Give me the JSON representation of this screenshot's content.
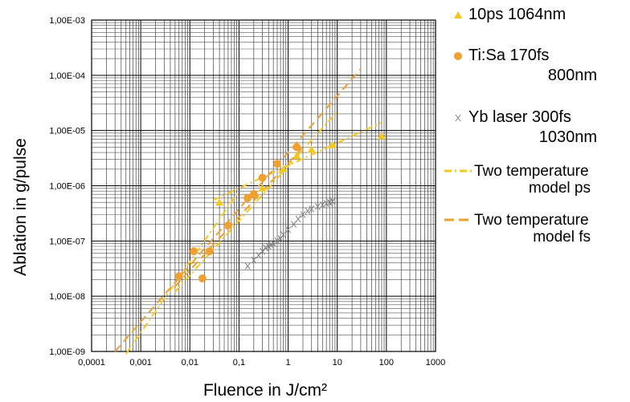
{
  "chart_data": {
    "type": "scatter",
    "xscale": "log",
    "yscale": "log",
    "xlim": [
      0.0001,
      1000
    ],
    "ylim": [
      1e-09,
      0.001
    ],
    "grid": true,
    "grid_minor": true,
    "xlabel": "Fluence in J/cm²",
    "ylabel": "Ablation in g/pulse",
    "x_tick_labels": [
      "0,0001",
      "0,001",
      "0,01",
      "0,1",
      "1",
      "10",
      "100",
      "1000"
    ],
    "y_tick_labels": [
      "1,00E-09",
      "1,00E-08",
      "1,00E-07",
      "1,00E-06",
      "1,00E-05",
      "1,00E-04",
      "1,00E-03"
    ],
    "legend_position": "right",
    "series": [
      {
        "name": "10ps 1064nm",
        "kind": "points",
        "marker": "triangle",
        "color": "#F5C71A",
        "points": [
          [
            0.04,
            5e-07
          ],
          [
            0.3,
            9e-07
          ],
          [
            0.8,
            2e-06
          ],
          [
            1.5,
            3.5e-06
          ],
          [
            3,
            4.5e-06
          ],
          [
            8,
            5.5e-06
          ],
          [
            80,
            8e-06
          ]
        ]
      },
      {
        "name": "Ti:Sa 170fs 800nm",
        "kind": "points",
        "marker": "circle",
        "color": "#F0A030",
        "points": [
          [
            0.006,
            2.3e-08
          ],
          [
            0.012,
            6.5e-08
          ],
          [
            0.018,
            2.1e-08
          ],
          [
            0.025,
            6.5e-08
          ],
          [
            0.06,
            1.9e-07
          ],
          [
            0.15,
            6e-07
          ],
          [
            0.2,
            7e-07
          ],
          [
            0.3,
            1.4e-06
          ],
          [
            0.6,
            2.5e-06
          ],
          [
            1.5,
            5e-06
          ]
        ]
      },
      {
        "name": "Yb laser 300fs 1030nm",
        "kind": "points",
        "marker": "cross",
        "color": "#808080",
        "points": [
          [
            0.15,
            3.5e-08
          ],
          [
            0.2,
            4.5e-08
          ],
          [
            0.25,
            5.5e-08
          ],
          [
            0.3,
            6.5e-08
          ],
          [
            0.35,
            7.5e-08
          ],
          [
            0.4,
            8e-08
          ],
          [
            0.45,
            8.5e-08
          ],
          [
            0.5,
            9e-08
          ],
          [
            0.6,
            1e-07
          ],
          [
            0.7,
            1.1e-07
          ],
          [
            0.8,
            1.3e-07
          ],
          [
            1,
            1.6e-07
          ],
          [
            1.3,
            2e-07
          ],
          [
            1.6,
            2.5e-07
          ],
          [
            2,
            3e-07
          ],
          [
            2.5,
            3.5e-07
          ],
          [
            3,
            3.8e-07
          ],
          [
            4,
            4.2e-07
          ],
          [
            5,
            4.5e-07
          ],
          [
            6,
            4.8e-07
          ],
          [
            7,
            5e-07
          ],
          [
            8,
            5.2e-07
          ]
        ]
      },
      {
        "name": "Two temperature model ps",
        "kind": "line",
        "dash": "dashdot",
        "color": "#F5C71A",
        "segments": [
          [
            [
              0.0005,
              9e-10
            ],
            [
              0.1,
              8e-07
            ]
          ],
          [
            [
              0.03,
              5.5e-07
            ],
            [
              80,
              1.4e-05
            ]
          ],
          [
            [
              0.005,
              1.2e-08
            ],
            [
              10,
              2.2e-05
            ]
          ]
        ]
      },
      {
        "name": "Two temperature model fs",
        "kind": "line",
        "dash": "dash",
        "color": "#F0A030",
        "segments": [
          [
            [
              0.0003,
              1e-09
            ],
            [
              30,
              0.00013
            ]
          ],
          [
            [
              0.005,
              1.5e-08
            ],
            [
              2,
              5e-06
            ]
          ]
        ]
      }
    ],
    "legend": [
      {
        "lines": [
          "10ps 1064nm"
        ]
      },
      {
        "lines": [
          "Ti:Sa 170fs",
          "800nm"
        ]
      },
      {
        "lines": [
          "Yb laser 300fs",
          "1030nm"
        ]
      },
      {
        "lines": [
          "Two temperature",
          "model ps"
        ]
      },
      {
        "lines": [
          "Two temperature",
          "model fs"
        ]
      }
    ]
  }
}
